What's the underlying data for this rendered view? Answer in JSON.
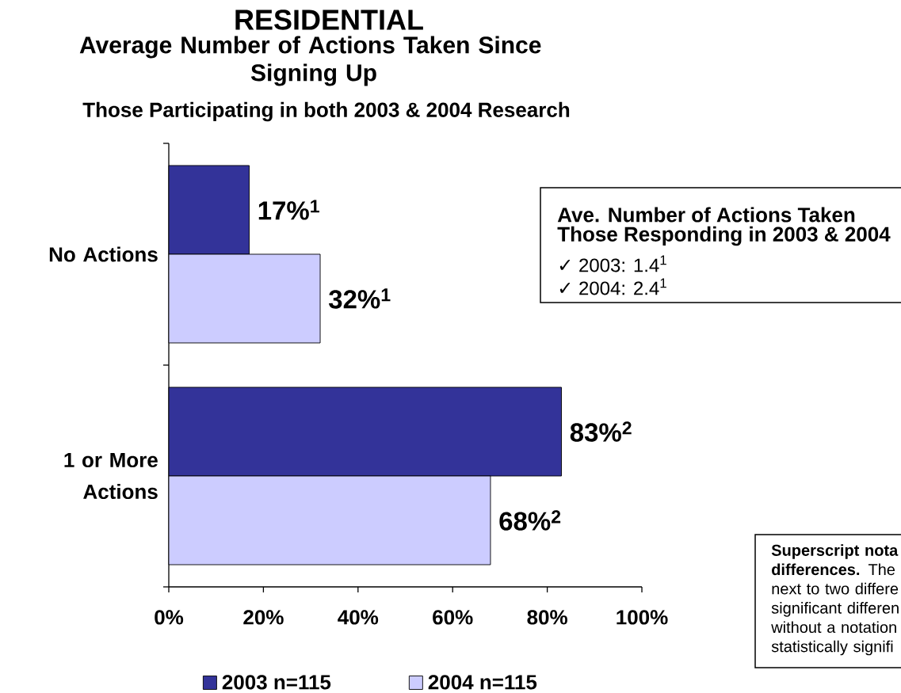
{
  "chart_data": {
    "type": "bar",
    "orientation": "horizontal",
    "title": "RESIDENTIAL",
    "subtitle": "Average Number of Actions Taken Since Signing Up",
    "categories": [
      "No Actions",
      "1 or More Actions"
    ],
    "series": [
      {
        "name": "2003 n=115",
        "color": "#333399",
        "values": [
          17,
          83
        ],
        "value_labels": [
          "17%$^{1}$",
          "83%$^{2}$"
        ]
      },
      {
        "name": "2004 n=115",
        "color": "#ccccff",
        "values": [
          32,
          68
        ],
        "value_labels": [
          "32%$^{1}$",
          "68%$^{2}$"
        ]
      }
    ],
    "xlim": [
      0,
      100
    ],
    "xticks": [
      {
        "value": 0,
        "label": "0%"
      },
      {
        "value": 20,
        "label": "20%"
      },
      {
        "value": 40,
        "label": "40%"
      },
      {
        "value": 60,
        "label": "60%"
      },
      {
        "value": 80,
        "label": "80%"
      },
      {
        "value": 100,
        "label": "100%"
      }
    ],
    "legend": "bottom",
    "annotations": [
      "Those Participating in both 2003 & 2004 Research",
      "Ave. Number of Actions Taken",
      "Those Responding in 2003 & 2004",
      "✓ 2003: 1.4$^{1}$",
      "✓ 2004: 2.4$^{1}$",
      "**Superscript nota differences.** The next to two differe significant differen without a notation statistically signifi"
    ]
  }
}
